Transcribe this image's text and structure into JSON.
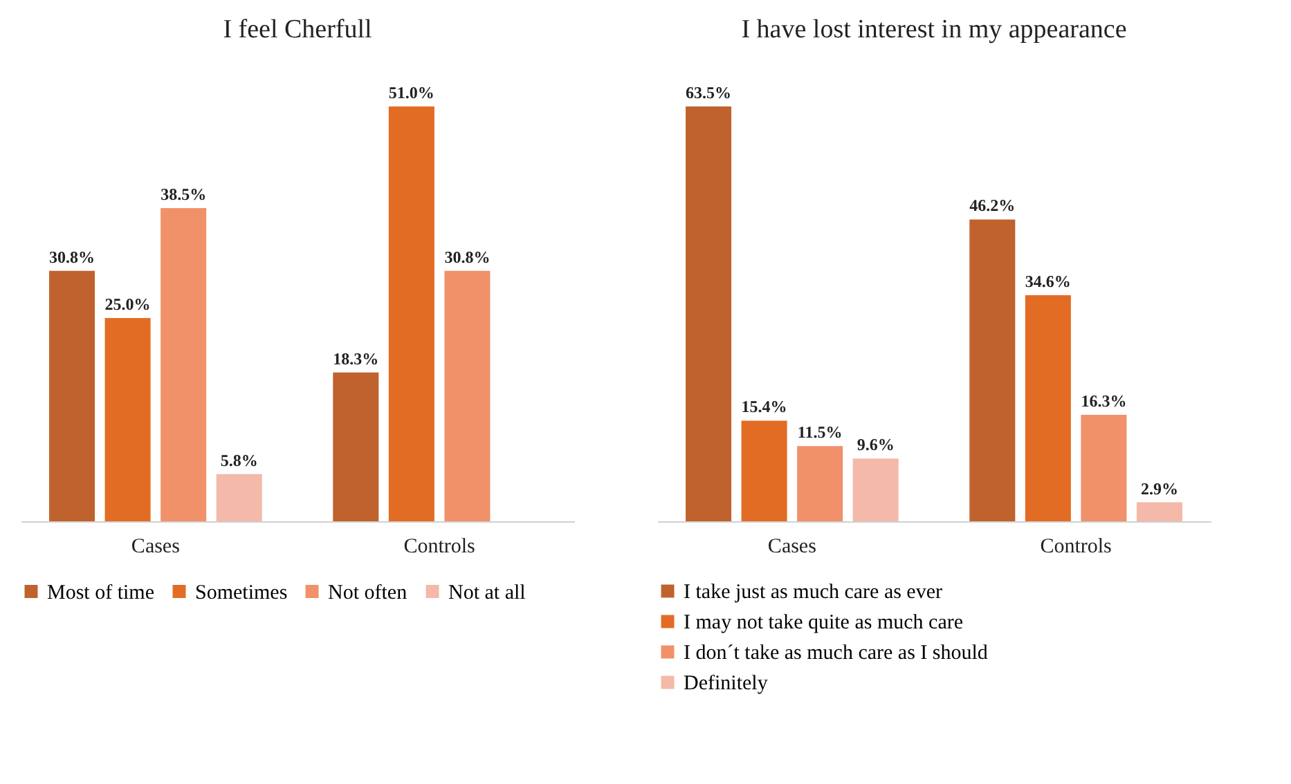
{
  "chart_data": [
    {
      "type": "bar",
      "title": "I feel Cherfull",
      "categories": [
        "Cases",
        "Controls"
      ],
      "legend": "bottom",
      "data_labels": false,
      "series": [
        {
          "name": "Most of time",
          "color": "#c0622e",
          "values": [
            30.8,
            18.3
          ],
          "value_labels": [
            "30.8%",
            "18.3%"
          ]
        },
        {
          "name": "Sometimes",
          "color": "#e36c24",
          "values": [
            25.0,
            51.0
          ],
          "value_labels": [
            "25.0%",
            "51.0%"
          ]
        },
        {
          "name": "Not often",
          "color": "#f0916a",
          "values": [
            38.5,
            30.8
          ],
          "value_labels": [
            "38.5%",
            "30.8%"
          ]
        },
        {
          "name": "Not at all",
          "color": "#f4b9a8",
          "values": [
            5.8,
            null
          ],
          "value_labels": [
            "5.8%",
            null
          ]
        }
      ]
    },
    {
      "type": "bar",
      "title": "I have lost interest in my appearance",
      "categories": [
        "Cases",
        "Controls"
      ],
      "legend": "bottom",
      "data_labels": false,
      "series": [
        {
          "name": "I take just as much care as ever",
          "color": "#c0622e",
          "values": [
            63.5,
            46.2
          ],
          "value_labels": [
            "63.5%",
            "46.2%"
          ]
        },
        {
          "name": "I may not take quite as much care",
          "color": "#e36c24",
          "values": [
            15.4,
            34.6
          ],
          "value_labels": [
            "15.4%",
            "34.6%"
          ]
        },
        {
          "name": "I don´t take as much care as I should",
          "color": "#f0916a",
          "values": [
            11.5,
            16.3
          ],
          "value_labels": [
            "11.5%",
            "16.3%"
          ]
        },
        {
          "name": "Definitely",
          "color": "#f4b9a8",
          "values": [
            9.6,
            2.9
          ],
          "value_labels": [
            "9.6%",
            "2.9%"
          ]
        }
      ]
    }
  ]
}
